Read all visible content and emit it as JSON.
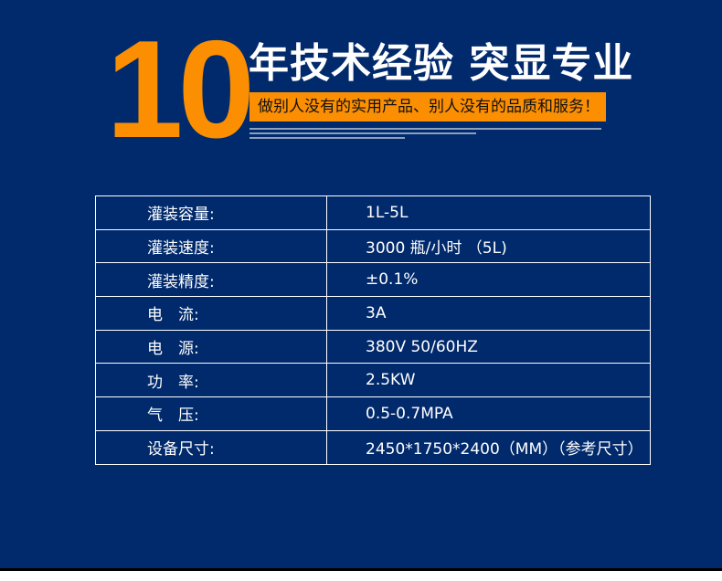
{
  "colors": {
    "background": "#012a6c",
    "accent": "#fb8f01",
    "text": "#ffffff"
  },
  "header": {
    "big_number": "10",
    "headline": "年技术经验 突显专业",
    "slogan": "做别人没有的实用产品、别人没有的品质和服务！"
  },
  "specs": [
    {
      "label": "灌装容量:",
      "value": "1L-5L"
    },
    {
      "label": "灌装速度:",
      "value": "3000 瓶/小时 （5L)"
    },
    {
      "label": "灌装精度:",
      "value": "±0.1%"
    },
    {
      "label": "电　流:",
      "value": "3A"
    },
    {
      "label": "电　源:",
      "value": "380V 50/60HZ"
    },
    {
      "label": "功　率:",
      "value": "2.5KW"
    },
    {
      "label": "气　压:",
      "value": "0.5-0.7MPA"
    },
    {
      "label": "设备尺寸:",
      "value": "2450*1750*2400（MM）（参考尺寸）"
    }
  ]
}
